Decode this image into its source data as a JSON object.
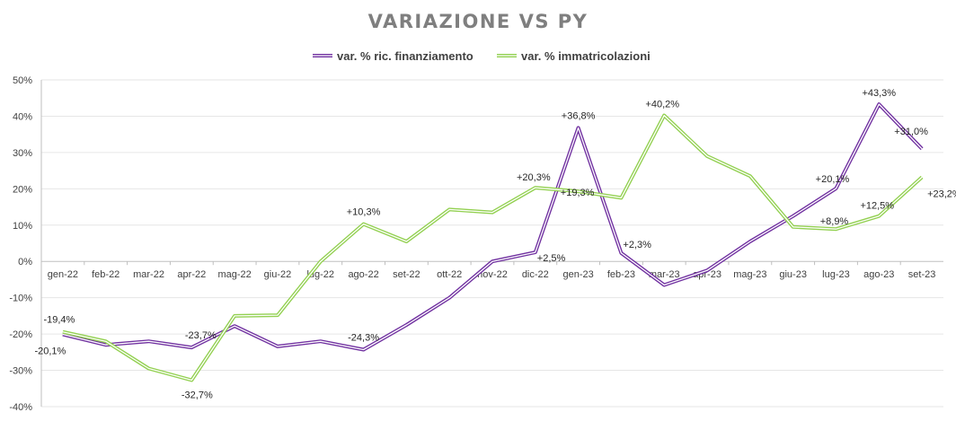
{
  "chart_data": {
    "type": "line",
    "title": "VARIAZIONE VS PY",
    "categories": [
      "gen-22",
      "feb-22",
      "mar-22",
      "apr-22",
      "mag-22",
      "giu-22",
      "lug-22",
      "ago-22",
      "set-22",
      "ott-22",
      "nov-22",
      "dic-22",
      "gen-23",
      "feb-23",
      "mar-23",
      "apr-23",
      "mag-23",
      "giu-23",
      "lug-23",
      "ago-23",
      "set-23"
    ],
    "ylim": [
      -40,
      50
    ],
    "yticks": [
      "-40%",
      "-30%",
      "-20%",
      "-10%",
      "0%",
      "10%",
      "20%",
      "30%",
      "40%",
      "50%"
    ],
    "grid": true,
    "legend_position": "top",
    "series": [
      {
        "name": "var. % ric. finanziamento",
        "color": "#7030a0",
        "values": [
          -20.1,
          -23.0,
          -22.0,
          -23.7,
          -17.8,
          -23.4,
          -22.0,
          -24.3,
          -17.5,
          -10.0,
          0.0,
          2.5,
          36.8,
          2.3,
          -6.5,
          -2.5,
          5.5,
          12.5,
          20.1,
          43.3,
          31.0
        ]
      },
      {
        "name": "var. % immatricolazioni",
        "color": "#92d050",
        "values": [
          -19.4,
          -22.0,
          -29.5,
          -32.7,
          -15.0,
          -14.8,
          0.0,
          10.3,
          5.5,
          14.3,
          13.5,
          20.3,
          19.3,
          17.5,
          40.2,
          29.0,
          23.5,
          9.5,
          8.9,
          12.5,
          23.2
        ]
      }
    ],
    "annotations": [
      {
        "series": 0,
        "index": 0,
        "text": "-20,1%"
      },
      {
        "series": 1,
        "index": 0,
        "text": "-19,4%"
      },
      {
        "series": 0,
        "index": 3,
        "text": "-23,7%"
      },
      {
        "series": 1,
        "index": 3,
        "text": "-32,7%"
      },
      {
        "series": 0,
        "index": 7,
        "text": "-24,3%"
      },
      {
        "series": 1,
        "index": 7,
        "text": "+10,3%"
      },
      {
        "series": 0,
        "index": 11,
        "text": "+2,5%"
      },
      {
        "series": 1,
        "index": 11,
        "text": "+20,3%"
      },
      {
        "series": 0,
        "index": 12,
        "text": "+36,8%"
      },
      {
        "series": 1,
        "index": 12,
        "text": "+19,3%"
      },
      {
        "series": 0,
        "index": 13,
        "text": "+2,3%"
      },
      {
        "series": 1,
        "index": 14,
        "text": "+40,2%"
      },
      {
        "series": 0,
        "index": 18,
        "text": "+20,1%"
      },
      {
        "series": 1,
        "index": 18,
        "text": "+8,9%"
      },
      {
        "series": 0,
        "index": 19,
        "text": "+43,3%"
      },
      {
        "series": 1,
        "index": 19,
        "text": "+12,5%"
      },
      {
        "series": 0,
        "index": 20,
        "text": "+31,0%"
      },
      {
        "series": 1,
        "index": 20,
        "text": "+23,2%"
      }
    ]
  }
}
